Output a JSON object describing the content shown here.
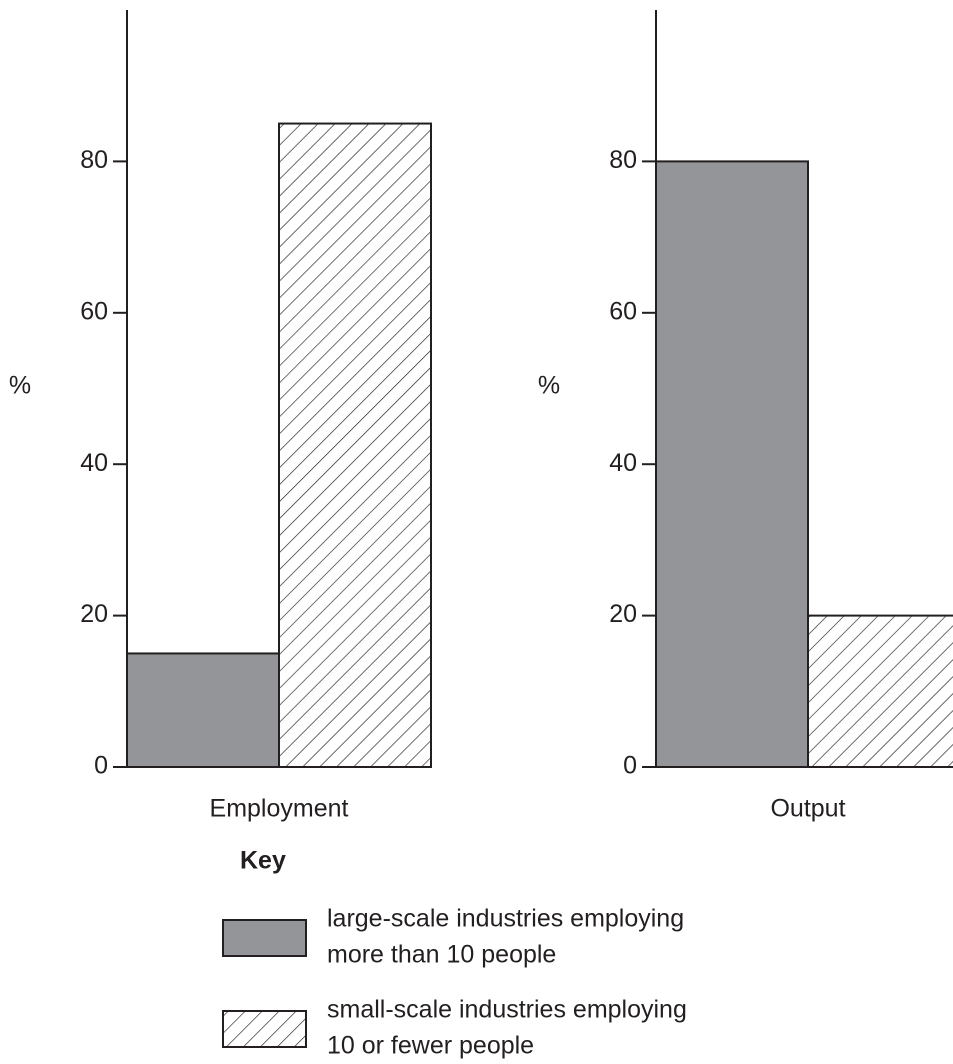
{
  "chart_data": [
    {
      "type": "bar",
      "ylabel": "%",
      "categories": [
        "Employment"
      ],
      "series": [
        {
          "values": [
            15
          ]
        },
        {
          "values": [
            85
          ]
        }
      ],
      "ylim": [
        0,
        100
      ],
      "yticks": [
        0,
        20,
        40,
        60,
        80
      ]
    },
    {
      "type": "bar",
      "ylabel": "%",
      "categories": [
        "Output"
      ],
      "series": [
        {
          "values": [
            80
          ]
        },
        {
          "values": [
            20
          ]
        }
      ],
      "ylim": [
        0,
        100
      ],
      "yticks": [
        0,
        20,
        40,
        60,
        80
      ]
    }
  ],
  "key": {
    "title": "Key",
    "series": [
      {
        "name": [
          "large-scale industries employing",
          "more than 10 people"
        ],
        "color": "#939598",
        "pattern": "solid"
      },
      {
        "name": [
          "small-scale industries employing",
          "10 or fewer people"
        ],
        "color": "#ffffff",
        "pattern": "hatch"
      }
    ]
  }
}
